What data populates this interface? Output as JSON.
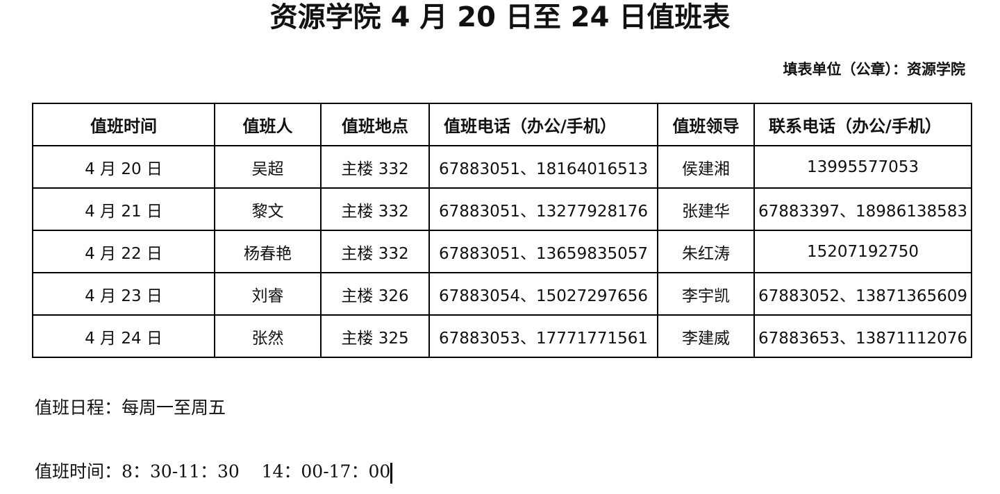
{
  "title": "资源学院 4 月 20 日至 24 日值班表",
  "unit": "填表单位（公章）：资源学院",
  "table": {
    "headers": [
      "值班时间",
      "值班人",
      "值班地点",
      "值班电话（办公/手机）",
      "值班领导",
      "联系电话（办公/手机）"
    ],
    "rows": [
      [
        "4 月 20 日",
        "吴超",
        "主楼 332",
        "67883051、18164016513",
        "侯建湘",
        "13995577053"
      ],
      [
        "4 月 21 日",
        "黎文",
        "主楼 332",
        "67883051、13277928176",
        "张建华",
        "67883397、18986138583"
      ],
      [
        "4 月 22 日",
        "杨春艳",
        "主楼 332",
        "67883051、13659835057",
        "朱红涛",
        "15207192750"
      ],
      [
        "4 月 23 日",
        "刘睿",
        "主楼 326",
        "67883054、15027297656",
        "李宇凯",
        "67883052、13871365609"
      ],
      [
        "4 月 24 日",
        "张然",
        "主楼 325",
        "67883053、17771771561",
        "李建威",
        "67883653、13871112076"
      ]
    ]
  },
  "notes": {
    "schedule": "值班日程：每周一至周五",
    "hours": "值班时间：8：30-11：30    14：00-17：00"
  }
}
